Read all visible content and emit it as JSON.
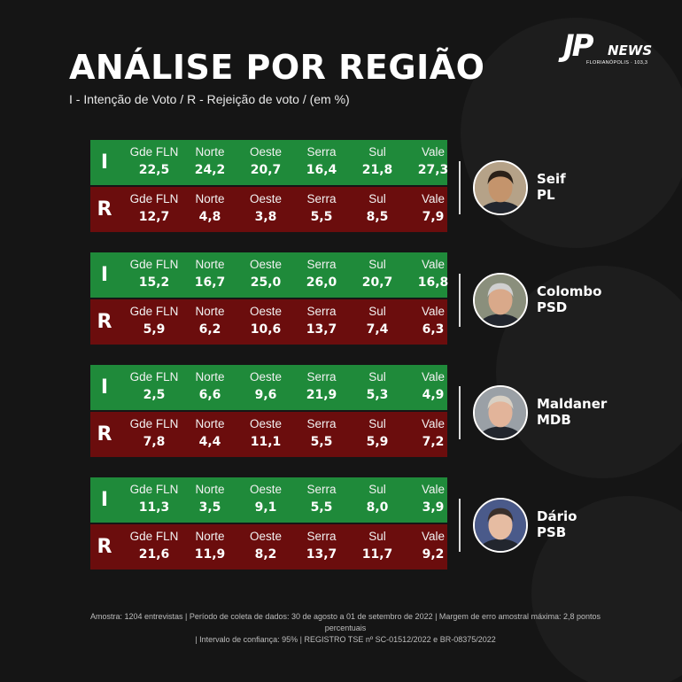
{
  "header": {
    "title": "ANÁLISE POR REGIÃO",
    "subtitle": "I - Intenção de Voto / R - Rejeição de voto / (em %)"
  },
  "logo": {
    "mark": "JP",
    "news": "NEWS",
    "city": "FLORIANÓPOLIS · 103,3"
  },
  "colors": {
    "intention_row": "#1f8a3a",
    "rejection_row": "#6b0d0d",
    "background": "#151515"
  },
  "chart_data": {
    "type": "table",
    "regions": [
      "Gde FLN",
      "Norte",
      "Oeste",
      "Serra",
      "Sul",
      "Vale"
    ],
    "row_letters": {
      "intention": "I",
      "rejection": "R"
    },
    "candidates": [
      {
        "name": "Seif",
        "party": "PL",
        "intention": [
          "22,5",
          "24,2",
          "20,7",
          "16,4",
          "21,8",
          "27,3"
        ],
        "rejection": [
          "12,7",
          "4,8",
          "3,8",
          "5,5",
          "8,5",
          "7,9"
        ]
      },
      {
        "name": "Colombo",
        "party": "PSD",
        "intention": [
          "15,2",
          "16,7",
          "25,0",
          "26,0",
          "20,7",
          "16,8"
        ],
        "rejection": [
          "5,9",
          "6,2",
          "10,6",
          "13,7",
          "7,4",
          "6,3"
        ]
      },
      {
        "name": "Maldaner",
        "party": "MDB",
        "intention": [
          "2,5",
          "6,6",
          "9,6",
          "21,9",
          "5,3",
          "4,9"
        ],
        "rejection": [
          "7,8",
          "4,4",
          "11,1",
          "5,5",
          "5,9",
          "7,2"
        ]
      },
      {
        "name": "Dário",
        "party": "PSB",
        "intention": [
          "11,3",
          "3,5",
          "9,1",
          "5,5",
          "8,0",
          "3,9"
        ],
        "rejection": [
          "21,6",
          "11,9",
          "8,2",
          "13,7",
          "11,7",
          "9,2"
        ]
      }
    ]
  },
  "footer": {
    "line1": "Amostra: 1204 entrevistas | Período de coleta de dados: 30 de agosto a 01 de setembro de 2022 | Margem de erro amostral máxima: 2,8 pontos percentuais",
    "line2": "| Intervalo de confiança: 95% | REGISTRO TSE nº SC-01512/2022 e BR-08375/2022"
  }
}
